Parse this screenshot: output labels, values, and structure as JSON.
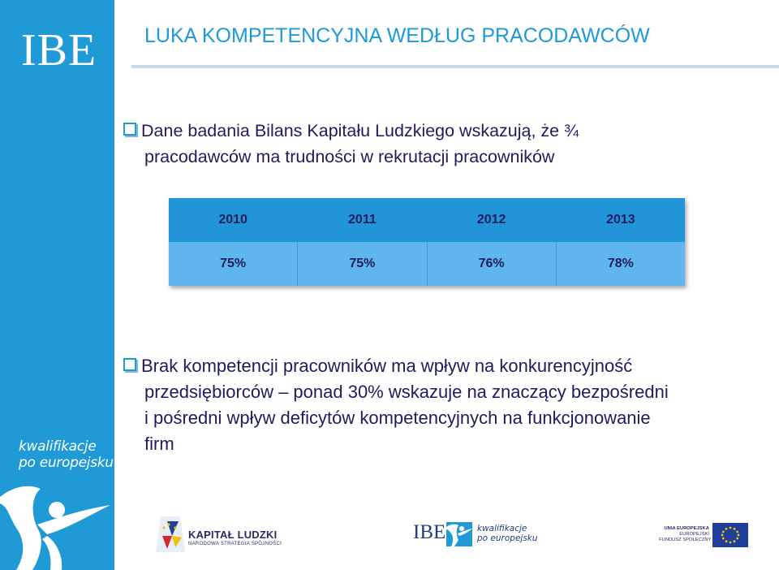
{
  "sidebar": {
    "logo_text": "IBE",
    "tagline_line1": "kwalifikacje",
    "tagline_line2": "po europejsku"
  },
  "title": "LUKA KOMPETENCYJNA WEDŁUG PRACODAWCÓW",
  "bullet1": {
    "line1": "Dane badania Bilans Kapitału Ludzkiego wskazują, że ¾",
    "line2": "pracodawców ma trudności w rekrutacji pracowników"
  },
  "table": {
    "headers": [
      "2010",
      "2011",
      "2012",
      "2013"
    ],
    "values": [
      "75%",
      "75%",
      "76%",
      "78%"
    ]
  },
  "bullet2": {
    "line1": "Brak kompetencji pracowników ma wpływ na konkurencyjność",
    "line2": "przedsiębiorców – ponad 30% wskazuje na znaczący bezpośredni",
    "line3": "i pośredni wpływ deficytów kompetencyjnych na funkcjonowanie",
    "line4": "firm"
  },
  "footer": {
    "kl_title": "KAPITAŁ LUDZKI",
    "kl_subtitle": "NARODOWA STRATEGIA SPÓJNOŚCI",
    "ibe_text": "IBE",
    "kwal_line1": "kwalifikacje",
    "kwal_line2": "po europejsku",
    "ue_line1": "UNIA EUROPEJSKA",
    "ue_line2": "EUROPEJSKI",
    "ue_line3": "FUNDUSZ SPOŁECZNY"
  },
  "colors": {
    "accent": "#1f9ad6",
    "text": "#1d1d5e",
    "table_header": "#2195d8",
    "table_body": "#5fb6ec"
  },
  "icons": [
    "checkbox-bullet-icon",
    "person-figure-icon",
    "kapital-ludzki-logo-icon",
    "eu-flag-icon"
  ]
}
